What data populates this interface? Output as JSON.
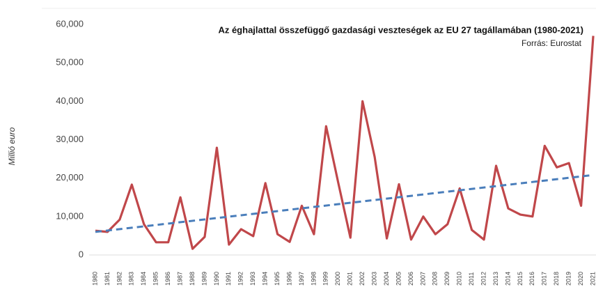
{
  "chart_data": {
    "type": "line",
    "title": "Az éghajlattal összefüggő gazdasági veszteségek az EU 27 tagállamában (1980-2021)",
    "subtitle": "Forrás: Eurostat",
    "y_label": "Millió euro",
    "categories": [
      "1980",
      "1981",
      "1982",
      "1983",
      "1984",
      "1985",
      "1986",
      "1987",
      "1988",
      "1989",
      "1990",
      "1991",
      "1992",
      "1993",
      "1994",
      "1995",
      "1996",
      "1997",
      "1998",
      "1999",
      "2000",
      "2001",
      "2002",
      "2003",
      "2004",
      "2005",
      "2006",
      "2007",
      "2008",
      "2009",
      "2010",
      "2011",
      "2012",
      "2013",
      "2014",
      "2015",
      "2016",
      "2017",
      "2018",
      "2019",
      "2020",
      "2021"
    ],
    "values": [
      6300,
      6000,
      9200,
      18300,
      8000,
      3300,
      3300,
      15000,
      1600,
      4700,
      27900,
      2700,
      6700,
      4900,
      18700,
      5400,
      3400,
      12800,
      5400,
      33500,
      18800,
      4500,
      40000,
      25500,
      4300,
      18400,
      4000,
      10000,
      5400,
      8000,
      17300,
      6500,
      4000,
      23200,
      12100,
      10500,
      10000,
      28400,
      22800,
      23900,
      12800,
      57000
    ],
    "color": "#c0474a",
    "trend": {
      "start": 6000,
      "end": 20800,
      "color": "#4a7ebb"
    },
    "ylim": [
      0,
      60000
    ],
    "yticks": [
      0,
      {
        "value": 10000,
        "label": "10,000"
      },
      {
        "value": 20000,
        "label": "20,000"
      },
      {
        "value": 30000,
        "label": "30,000"
      },
      {
        "value": 40000,
        "label": "40,000"
      },
      {
        "value": 50000,
        "label": "50,000"
      },
      {
        "value": 60000,
        "label": "60,000"
      }
    ]
  }
}
